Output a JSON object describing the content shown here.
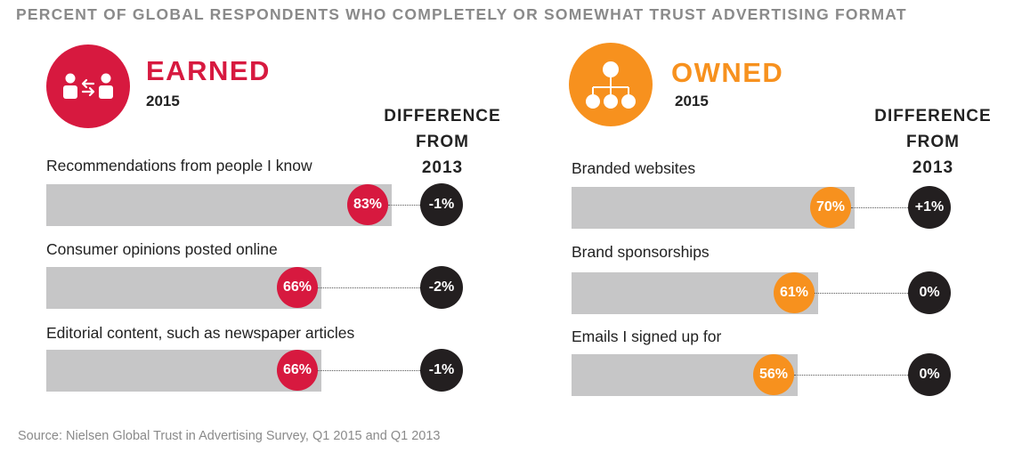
{
  "title": "PERCENT OF GLOBAL RESPONDENTS WHO COMPLETELY OR SOMEWHAT TRUST ADVERTISING FORMAT",
  "source": "Source: Nielsen Global Trust in Advertising Survey, Q1 2015 and Q1 2013",
  "colors": {
    "earned": "#d7193f",
    "owned": "#f7911e",
    "bar_track": "#c6c6c7",
    "diff_circle": "#231f20"
  },
  "earned": {
    "title": "EARNED",
    "year": "2015",
    "icon": "people-exchange-icon",
    "diff_header": [
      "DIFFERENCE",
      "FROM",
      "2013"
    ],
    "rows": [
      {
        "label": "Recommendations from people I know",
        "value_label": "83%",
        "diff": "-1%"
      },
      {
        "label": "Consumer opinions posted online",
        "value_label": "66%",
        "diff": "-2%"
      },
      {
        "label": "Editorial content, such as newspaper articles",
        "value_label": "66%",
        "diff": "-1%"
      }
    ]
  },
  "owned": {
    "title": "OWNED",
    "year": "2015",
    "icon": "org-chart-icon",
    "diff_header": [
      "DIFFERENCE",
      "FROM",
      "2013"
    ],
    "rows": [
      {
        "label": "Branded websites",
        "value_label": "70%",
        "diff": "+1%"
      },
      {
        "label": "Brand sponsorships",
        "value_label": "61%",
        "diff": "0%"
      },
      {
        "label": "Emails I signed up for",
        "value_label": "56%",
        "diff": "0%"
      }
    ]
  },
  "chart_data": [
    {
      "type": "bar",
      "title": "EARNED",
      "subtitle": "2015",
      "categories": [
        "Recommendations from people I know",
        "Consumer opinions posted online",
        "Editorial content, such as newspaper articles"
      ],
      "values": [
        83,
        66,
        66
      ],
      "difference_from_2013": [
        -1,
        -2,
        -1
      ],
      "xlim": [
        0,
        100
      ],
      "grid": false,
      "orientation": "horizontal"
    },
    {
      "type": "bar",
      "title": "OWNED",
      "subtitle": "2015",
      "categories": [
        "Branded websites",
        "Brand sponsorships",
        "Emails I signed up for"
      ],
      "values": [
        70,
        61,
        56
      ],
      "difference_from_2013": [
        1,
        0,
        0
      ],
      "xlim": [
        0,
        100
      ],
      "grid": false,
      "orientation": "horizontal"
    }
  ]
}
